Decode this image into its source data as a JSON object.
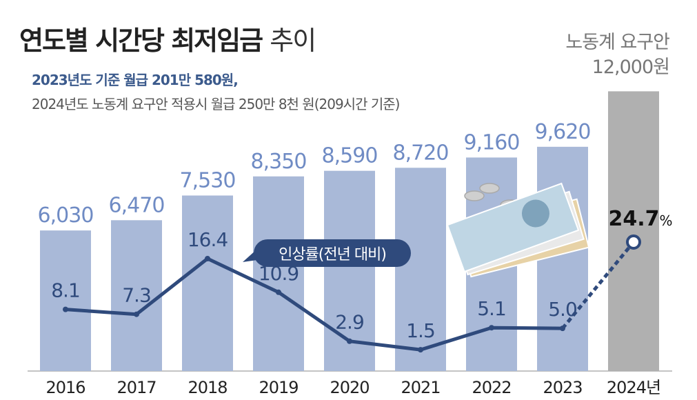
{
  "header": {
    "title_bold": "연도별 시간당 최저임금",
    "title_light": "추이",
    "subtitle_1": "2023년도 기준 월급 201만 580원,",
    "subtitle_2": "2024년도 노동계 요구안 적용시 월급 250만 8천 원(209시간 기준)",
    "demand_label": "노동계 요구안",
    "demand_value": "12,000원"
  },
  "chart_data": {
    "type": "bar",
    "categories": [
      "2016",
      "2017",
      "2018",
      "2019",
      "2020",
      "2021",
      "2022",
      "2023",
      "2024년"
    ],
    "series": [
      {
        "values": [
          6030,
          6470,
          7530,
          8350,
          8590,
          8720,
          9160,
          9620,
          12000
        ],
        "value_labels": [
          "6,030",
          "6,470",
          "7,530",
          "8,350",
          "8,590",
          "8,720",
          "9,160",
          "9,620",
          ""
        ]
      },
      {
        "name": "인상률(전년 대비)",
        "type": "line",
        "values": [
          8.1,
          7.3,
          16.4,
          10.9,
          2.9,
          1.5,
          5.1,
          5.0,
          24.7
        ],
        "value_labels": [
          "8.1",
          "7.3",
          "16.4",
          "10.9",
          "2.9",
          "1.5",
          "5.1",
          "5.0",
          "24.7"
        ],
        "last_unit": "%",
        "last_segment_style": "dashed"
      }
    ],
    "colors": {
      "bar": "#a9b9d8",
      "bar_highlight": "#b0b0b0",
      "bar_label": "#6f8bc4",
      "line": "#2f4a7c",
      "highlight_label": "#111111"
    }
  }
}
